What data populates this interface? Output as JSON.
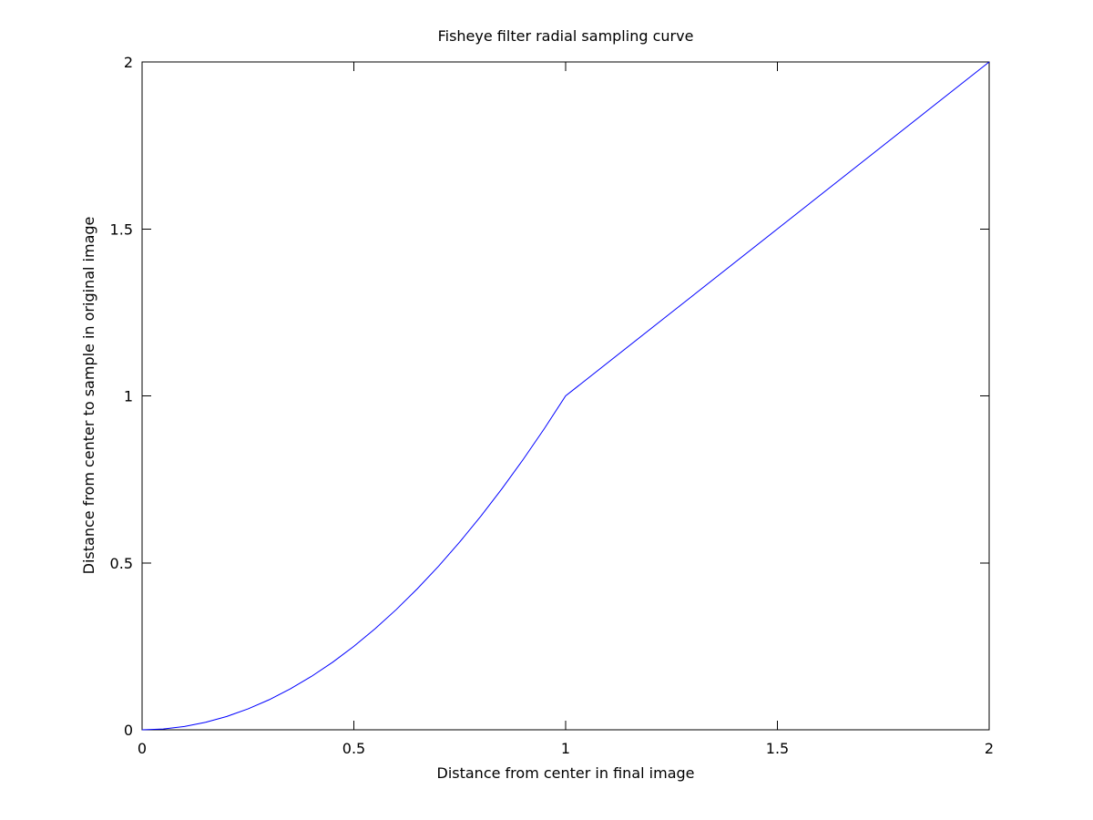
{
  "chart_data": {
    "type": "line",
    "title": "Fisheye filter radial sampling curve",
    "xlabel": "Distance from center in final image",
    "ylabel": "Distance from center to sample in original image",
    "xlim": [
      0,
      2
    ],
    "ylim": [
      0,
      2
    ],
    "x_ticks": [
      0,
      0.5,
      1,
      1.5,
      2
    ],
    "x_tick_labels": [
      "0",
      "0.5",
      "1",
      "1.5",
      "2"
    ],
    "y_ticks": [
      0,
      0.5,
      1,
      1.5,
      2
    ],
    "y_tick_labels": [
      "0",
      "0.5",
      "1",
      "1.5",
      "2"
    ],
    "grid": false,
    "legend": "none",
    "series": [
      {
        "color": "#0000ff",
        "x": [
          0,
          0.05,
          0.1,
          0.15,
          0.2,
          0.25,
          0.3,
          0.35,
          0.4,
          0.45,
          0.5,
          0.55,
          0.6,
          0.65,
          0.7,
          0.75,
          0.8,
          0.85,
          0.9,
          0.95,
          1,
          1.25,
          1.5,
          1.75,
          2
        ],
        "y": [
          0,
          0.0025,
          0.01,
          0.0225,
          0.04,
          0.0625,
          0.09,
          0.1225,
          0.16,
          0.2025,
          0.25,
          0.3025,
          0.36,
          0.4225,
          0.49,
          0.5625,
          0.64,
          0.7225,
          0.81,
          0.9025,
          1,
          1.25,
          1.5,
          1.75,
          2
        ]
      }
    ]
  }
}
